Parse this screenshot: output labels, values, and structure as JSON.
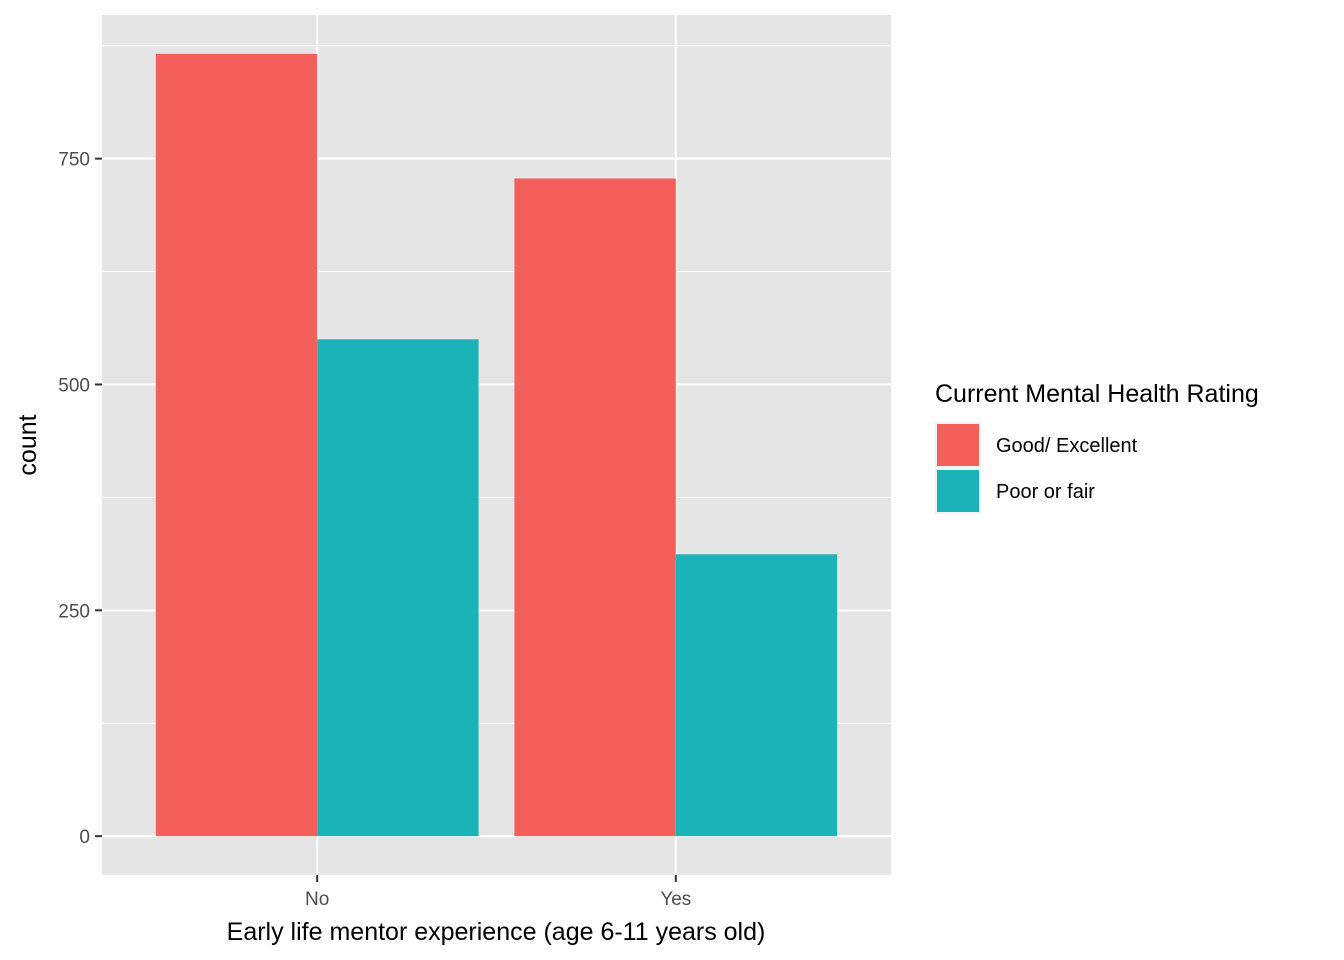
{
  "chart_data": {
    "type": "bar",
    "categories": [
      "No",
      "Yes"
    ],
    "series": [
      {
        "name": "Good/ Excellent",
        "values": [
          866,
          728
        ],
        "color": "#F35F5B"
      },
      {
        "name": "Poor or fair",
        "values": [
          550,
          312
        ],
        "color": "#19B3B8"
      }
    ],
    "xlabel": "Early life mentor experience (age 6-11 years old)",
    "ylabel": "count",
    "ylim": [
      -43,
      909
    ],
    "yticks": [
      0,
      250,
      500,
      750
    ],
    "ytick_labels": [
      "0",
      "250",
      "500",
      "750"
    ],
    "grid": true,
    "background": "#E5E5E5",
    "legend": {
      "title": "Current Mental Health Rating",
      "placement": "right"
    }
  }
}
